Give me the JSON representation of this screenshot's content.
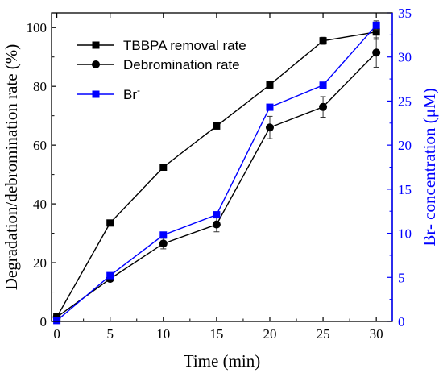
{
  "chart_data": {
    "type": "line",
    "xlabel": "Time (min)",
    "ylabel_left": "Degradation/debromination rate (%)",
    "ylabel_right_base": "Br- concentration (μM)",
    "x_ticks": [
      0,
      5,
      10,
      15,
      20,
      25,
      30
    ],
    "xlim": [
      -0.5,
      31.5
    ],
    "ylim_left": [
      0,
      105
    ],
    "y_ticks_left": [
      0,
      20,
      40,
      60,
      80,
      100
    ],
    "ylim_right": [
      0,
      35
    ],
    "y_ticks_right": [
      0,
      5,
      10,
      15,
      20,
      25,
      30,
      35
    ],
    "legend_position": "top-left",
    "series": [
      {
        "name": "TBBPA removal rate",
        "axis": "left",
        "color": "#000000",
        "marker": "square",
        "x": [
          0,
          5,
          10,
          15,
          20,
          25,
          30
        ],
        "y": [
          1.5,
          33.5,
          52.5,
          66.5,
          80.5,
          95.5,
          98.5
        ],
        "err": [
          0,
          0.5,
          0.5,
          0.5,
          1.2,
          1.2,
          2.5
        ]
      },
      {
        "name": "Debromination rate",
        "axis": "left",
        "color": "#000000",
        "marker": "circle",
        "x": [
          0,
          5,
          10,
          15,
          20,
          25,
          30
        ],
        "y": [
          1.5,
          14.5,
          26.5,
          33,
          66,
          73,
          91.5
        ],
        "err": [
          0,
          0.8,
          1.8,
          2.5,
          3.8,
          3.5,
          5
        ]
      },
      {
        "name_base": "Br",
        "name_sup": "-",
        "axis": "right",
        "color": "#0000ff",
        "marker": "square",
        "x": [
          0,
          5,
          10,
          15,
          20,
          25,
          30
        ],
        "y": [
          0.1,
          5.2,
          9.8,
          12.1,
          24.3,
          26.8,
          33.6
        ],
        "err": [
          0,
          0,
          0,
          0,
          0,
          0,
          0.5
        ]
      }
    ]
  },
  "colors": {
    "axis_left": "#000000",
    "axis_right": "#0000ff"
  }
}
